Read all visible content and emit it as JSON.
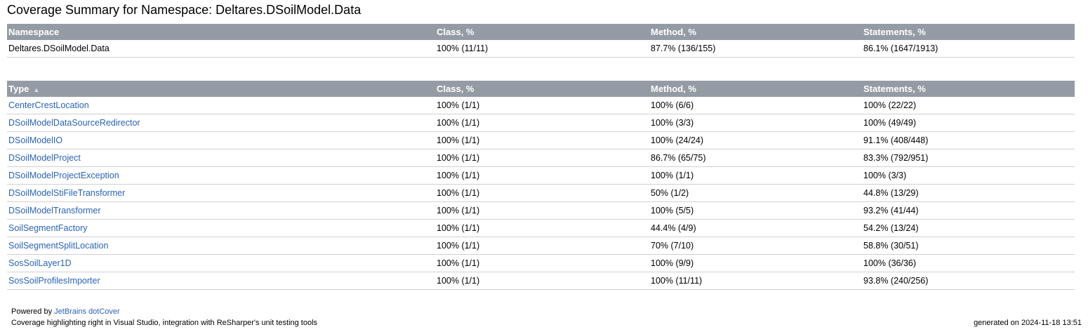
{
  "title": "Coverage Summary for Namespace: Deltares.DSoilModel.Data",
  "namespace_table": {
    "headers": [
      "Namespace",
      "Class, %",
      "Method, %",
      "Statements, %"
    ],
    "row": [
      "Deltares.DSoilModel.Data",
      "100% (11/11)",
      "87.7% (136/155)",
      "86.1% (1647/1913)"
    ]
  },
  "type_table": {
    "headers": [
      "Type",
      "Class, %",
      "Method, %",
      "Statements, %"
    ],
    "sort_icon": "sort-ascending-icon",
    "rows": [
      [
        "CenterCrestLocation",
        "100% (1/1)",
        "100% (6/6)",
        "100% (22/22)"
      ],
      [
        "DSoilModelDataSourceRedirector",
        "100% (1/1)",
        "100% (3/3)",
        "100% (49/49)"
      ],
      [
        "DSoilModelIO",
        "100% (1/1)",
        "100% (24/24)",
        "91.1% (408/448)"
      ],
      [
        "DSoilModelProject",
        "100% (1/1)",
        "86.7% (65/75)",
        "83.3% (792/951)"
      ],
      [
        "DSoilModelProjectException",
        "100% (1/1)",
        "100% (1/1)",
        "100% (3/3)"
      ],
      [
        "DSoilModelStiFileTransformer",
        "100% (1/1)",
        "50% (1/2)",
        "44.8% (13/29)"
      ],
      [
        "DSoilModelTransformer",
        "100% (1/1)",
        "100% (5/5)",
        "93.2% (41/44)"
      ],
      [
        "SoilSegmentFactory",
        "100% (1/1)",
        "44.4% (4/9)",
        "54.2% (13/24)"
      ],
      [
        "SoilSegmentSplitLocation",
        "100% (1/1)",
        "70% (7/10)",
        "58.8% (30/51)"
      ],
      [
        "SosSoilLayer1D",
        "100% (1/1)",
        "100% (9/9)",
        "100% (36/36)"
      ],
      [
        "SosSoilProfilesImporter",
        "100% (1/1)",
        "100% (11/11)",
        "93.8% (240/256)"
      ]
    ]
  },
  "footer": {
    "powered_by": "Powered by ",
    "link": "JetBrains dotCover",
    "tagline": "Coverage highlighting right in Visual Studio, integration with ReSharper's unit testing tools",
    "generated": "generated on 2024-11-18 13:51"
  },
  "colors": {
    "header_bg": "#959ba5",
    "link": "#2a63b8"
  }
}
